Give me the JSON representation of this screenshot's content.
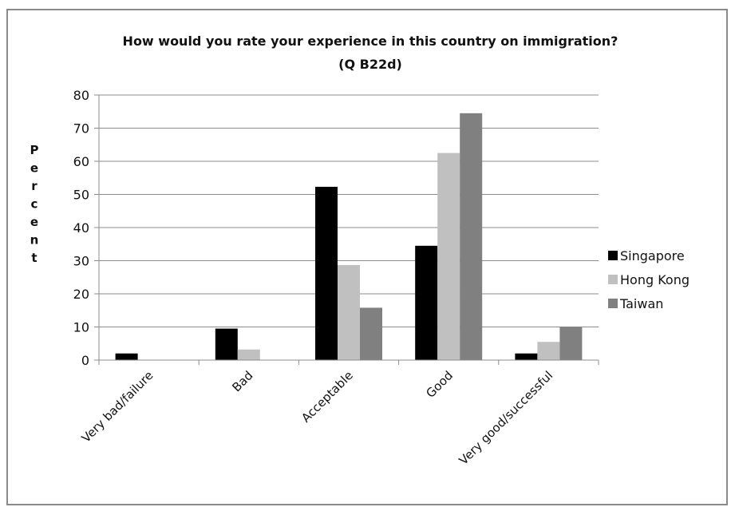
{
  "chart_data": {
    "type": "bar",
    "title": "How would you rate your experience in this country on immigration?",
    "subtitle": "(Q B22d)",
    "xlabel": "",
    "ylabel": "Percent",
    "ylim": [
      0,
      80
    ],
    "yticks": [
      0,
      10,
      20,
      30,
      40,
      50,
      60,
      70,
      80
    ],
    "grid": true,
    "legend_position": "right",
    "categories": [
      "Very bad/failure",
      "Bad",
      "Acceptable",
      "Good",
      "Very good/successful"
    ],
    "series": [
      {
        "name": "Singapore",
        "color": "#000000",
        "values": [
          2,
          9.5,
          52.3,
          34.5,
          2
        ]
      },
      {
        "name": "Hong Kong",
        "color": "#c0c0c0",
        "values": [
          0,
          3.2,
          28.7,
          62.5,
          5.5
        ]
      },
      {
        "name": "Taiwan",
        "color": "#808080",
        "values": [
          0,
          0,
          15.8,
          74.5,
          10
        ]
      }
    ]
  }
}
